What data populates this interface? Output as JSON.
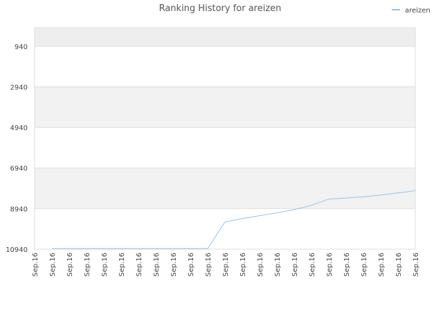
{
  "chart_data": {
    "type": "line",
    "title": "Ranking History for areizen",
    "categories": [
      "Sep.16",
      "Sep.16",
      "Sep.16",
      "Sep.16",
      "Sep.16",
      "Sep.16",
      "Sep.16",
      "Sep.16",
      "Sep.16",
      "Sep.16",
      "Sep.16",
      "Sep.16",
      "Sep.16",
      "Sep.16",
      "Sep.16",
      "Sep.16",
      "Sep.16",
      "Sep.16",
      "Sep.16",
      "Sep.16",
      "Sep.16",
      "Sep.16",
      "Sep.16"
    ],
    "series": [
      {
        "name": "areizen",
        "color": "#90c4ee",
        "values": [
          null,
          10910,
          10910,
          10910,
          10910,
          10910,
          10910,
          10910,
          10910,
          10910,
          10910,
          9600,
          9430,
          9290,
          9150,
          8990,
          8780,
          8470,
          8420,
          8360,
          8270,
          8170,
          8060
        ]
      }
    ],
    "ylim": [
      10940,
      25
    ],
    "yticks": [
      940,
      2940,
      4940,
      6940,
      8940,
      10940
    ],
    "grid": true,
    "legend": "top-right"
  }
}
